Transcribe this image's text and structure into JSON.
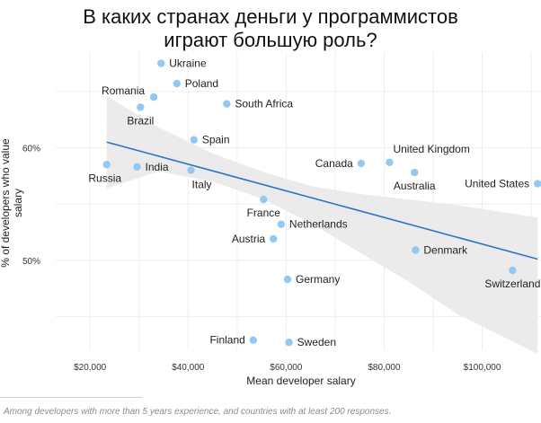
{
  "title": "В каких странах деньги у программистов\nиграют большую роль?",
  "footnote": "Among developers with more than 5 years experience, and countries with at least 200 responses.",
  "chart_data": {
    "type": "scatter",
    "xlabel": "Mean developer salary",
    "ylabel": "% of developers who value salary",
    "xlim": [
      13000,
      112000
    ],
    "ylim": [
      42,
      68.5
    ],
    "xticks": [
      20000,
      40000,
      60000,
      80000,
      100000
    ],
    "xtick_labels": [
      "$20,000",
      "$40,000",
      "$60,000",
      "$80,000",
      "$100,000"
    ],
    "yticks": [
      50,
      60
    ],
    "ytick_labels": [
      "50%",
      "60%"
    ],
    "grid": true,
    "point_color": "#93c9f0",
    "points": [
      {
        "label": "Ukraine",
        "x": 34500,
        "y": 67.5,
        "label_pos": "right"
      },
      {
        "label": "Poland",
        "x": 37700,
        "y": 65.7,
        "label_pos": "right"
      },
      {
        "label": "Romania",
        "x": 33000,
        "y": 64.5,
        "label_pos": "left-above"
      },
      {
        "label": "Brazil",
        "x": 30300,
        "y": 63.6,
        "label_pos": "below"
      },
      {
        "label": "South Africa",
        "x": 47900,
        "y": 63.9,
        "label_pos": "right"
      },
      {
        "label": "Spain",
        "x": 41200,
        "y": 60.7,
        "label_pos": "right"
      },
      {
        "label": "Russia",
        "x": 23400,
        "y": 58.5,
        "label_pos": "below-left"
      },
      {
        "label": "India",
        "x": 29600,
        "y": 58.3,
        "label_pos": "right"
      },
      {
        "label": "Italy",
        "x": 40600,
        "y": 58.0,
        "label_pos": "below-right"
      },
      {
        "label": "France",
        "x": 55400,
        "y": 55.4,
        "label_pos": "below"
      },
      {
        "label": "Netherlands",
        "x": 59000,
        "y": 53.2,
        "label_pos": "right"
      },
      {
        "label": "Austria",
        "x": 57400,
        "y": 51.9,
        "label_pos": "left"
      },
      {
        "label": "Germany",
        "x": 60300,
        "y": 48.3,
        "label_pos": "right"
      },
      {
        "label": "Finland",
        "x": 53300,
        "y": 42.9,
        "label_pos": "left"
      },
      {
        "label": "Sweden",
        "x": 60600,
        "y": 42.7,
        "label_pos": "right"
      },
      {
        "label": "Canada",
        "x": 75300,
        "y": 58.6,
        "label_pos": "left"
      },
      {
        "label": "United Kingdom",
        "x": 81100,
        "y": 58.7,
        "label_pos": "right-above"
      },
      {
        "label": "Australia",
        "x": 86200,
        "y": 57.8,
        "label_pos": "below"
      },
      {
        "label": "United States",
        "x": 111300,
        "y": 56.8,
        "label_pos": "left"
      },
      {
        "label": "Denmark",
        "x": 86400,
        "y": 50.9,
        "label_pos": "right"
      },
      {
        "label": "Switzerland",
        "x": 106200,
        "y": 49.1,
        "label_pos": "below"
      }
    ],
    "trend_line": {
      "color": "#2b78c2",
      "x": [
        23400,
        111300
      ],
      "y": [
        60.5,
        50.1
      ]
    },
    "confidence_band": {
      "color": "#ebebeb",
      "x": [
        23400,
        34000,
        45000,
        55000,
        65000,
        75000,
        85000,
        95000,
        111300
      ],
      "upper": [
        64.6,
        61.8,
        59.5,
        57.9,
        56.6,
        55.9,
        55.4,
        54.9,
        53.8
      ],
      "lower": [
        56.4,
        57.9,
        57.0,
        55.5,
        53.3,
        50.7,
        48.1,
        45.2,
        41.7
      ]
    }
  }
}
